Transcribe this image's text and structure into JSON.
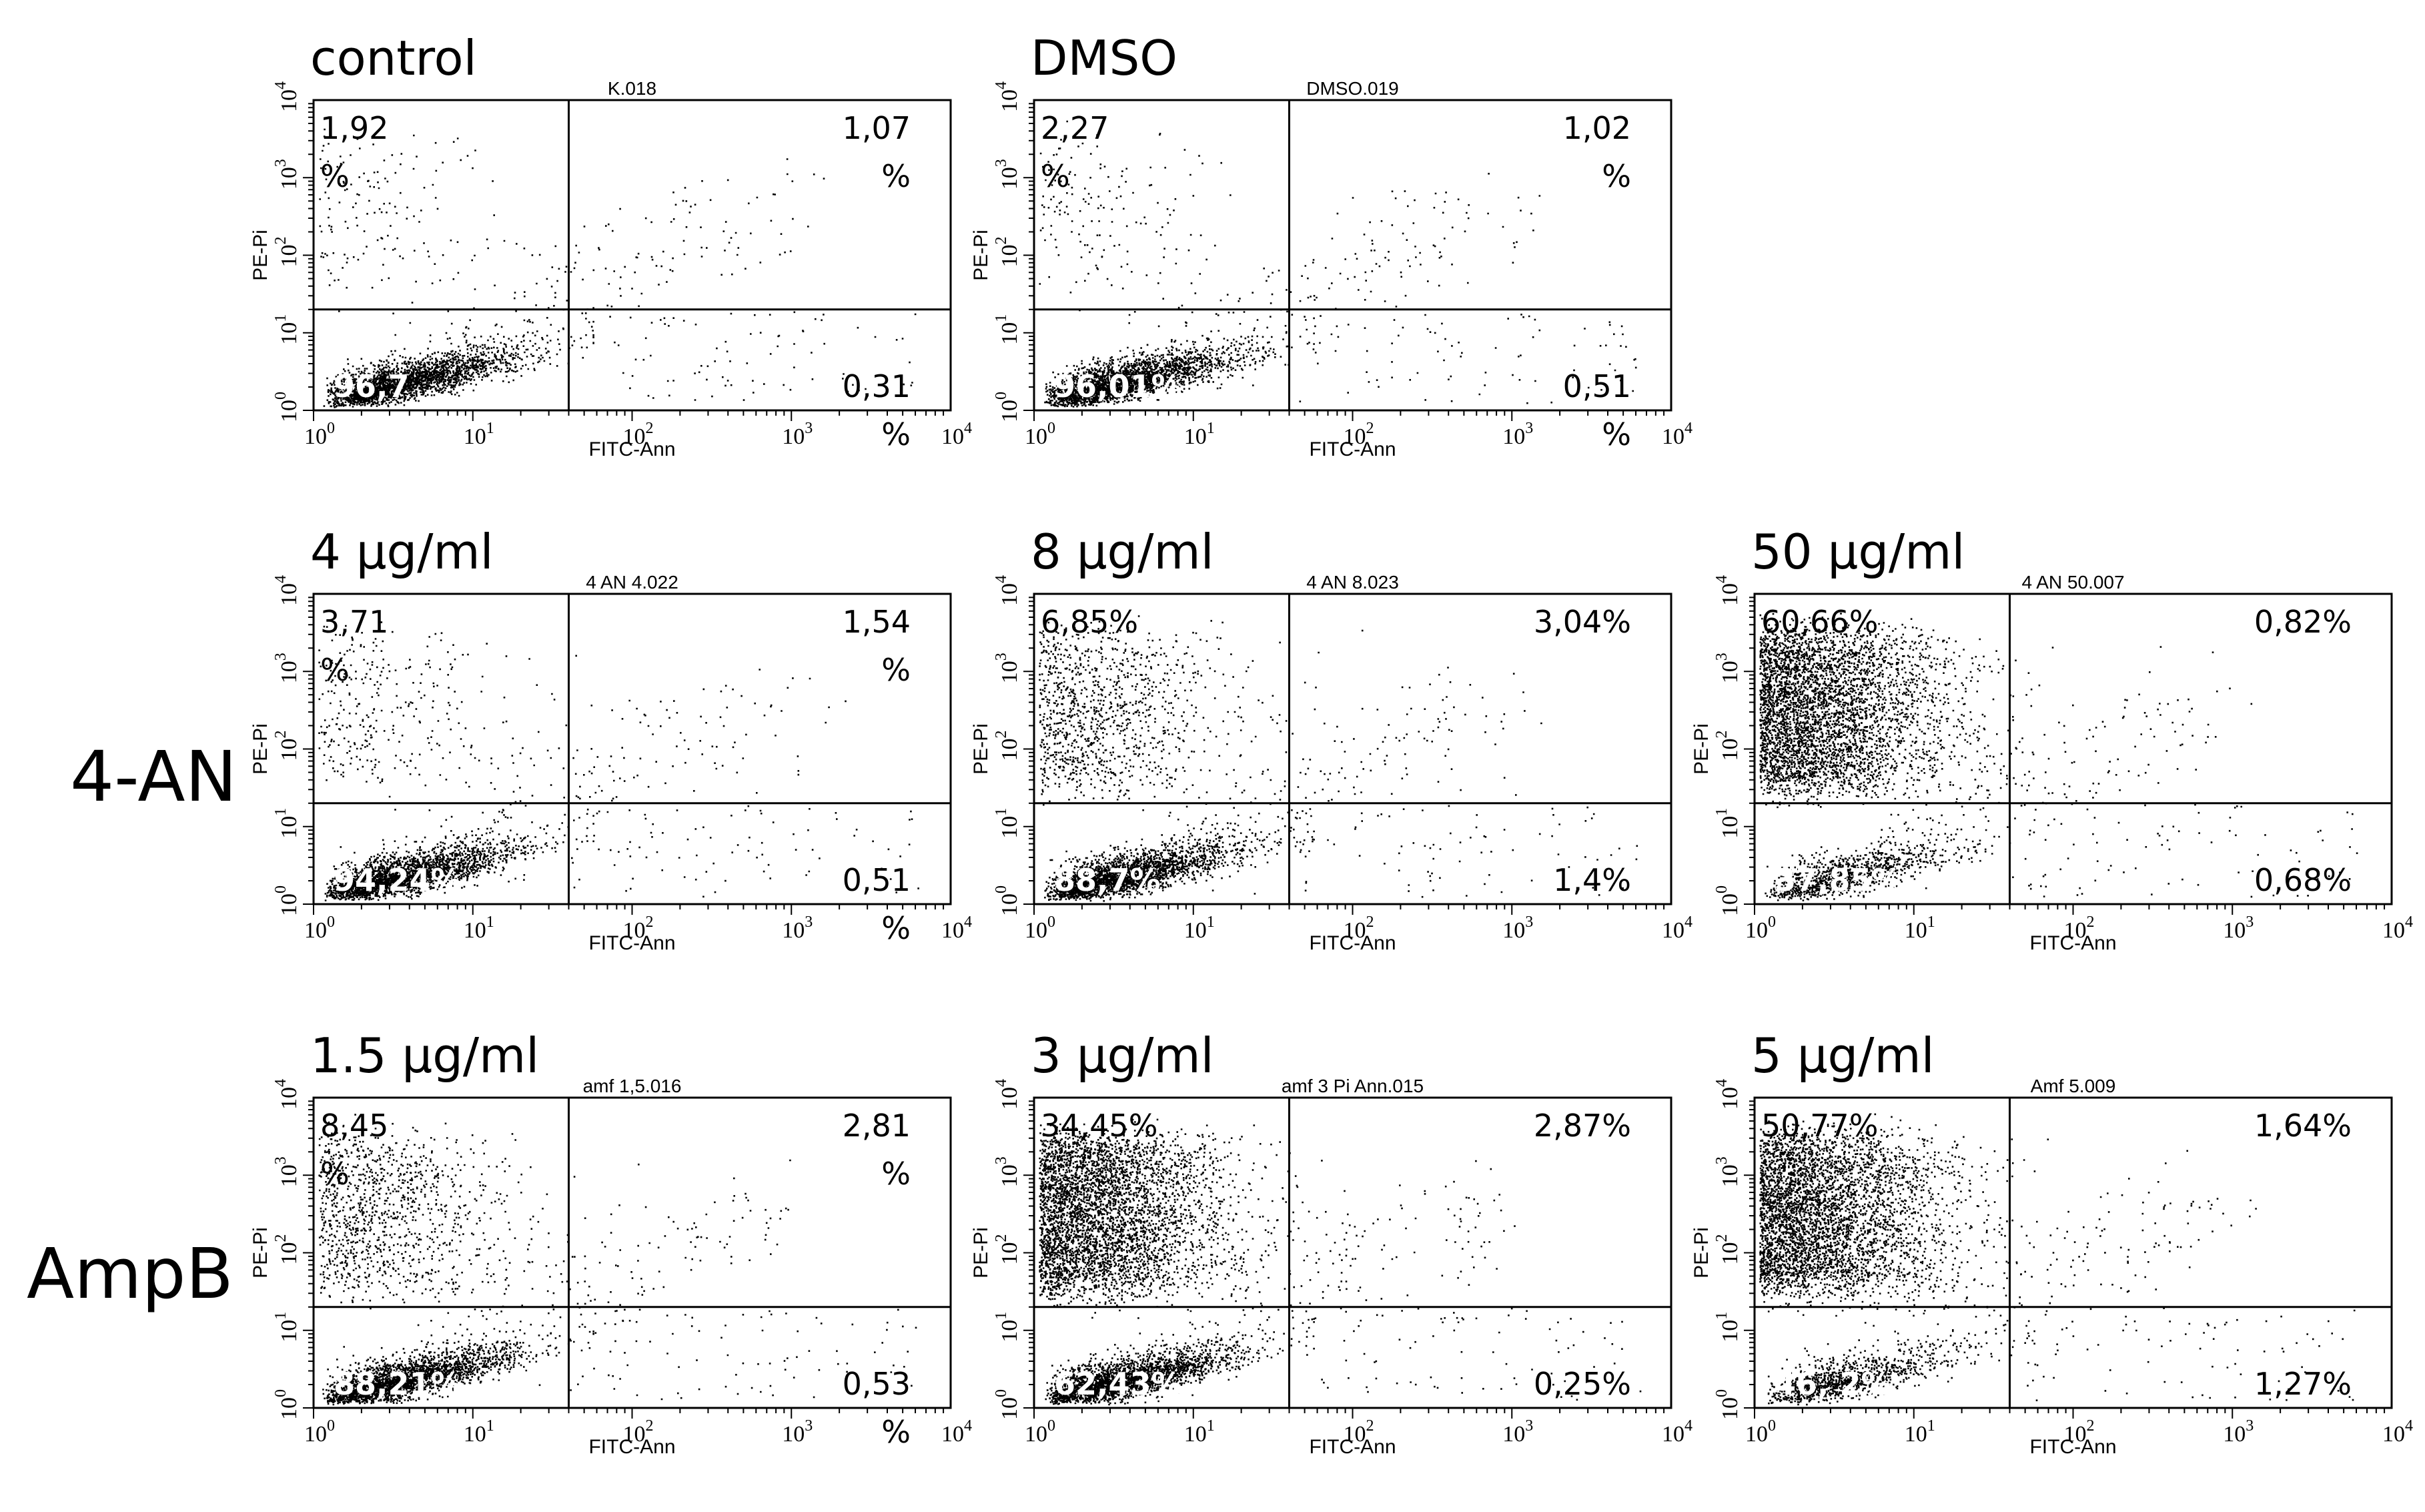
{
  "figure": {
    "row_labels": [
      "4-AN",
      "AmpB"
    ],
    "axis_x_label": "FITC-Ann",
    "axis_y_label": "PE-Pi"
  },
  "chart_data": [
    {
      "type": "scatter",
      "condition": "control",
      "title": "K.018",
      "xlabel": "FITC-Ann",
      "ylabel": "PE-Pi",
      "x_scale": "log",
      "y_scale": "log",
      "xlim": [
        1,
        10000
      ],
      "ylim": [
        1,
        10000
      ],
      "x_ticks": [
        "10^0",
        "10^1",
        "10^2",
        "10^3",
        "10^4"
      ],
      "y_ticks": [
        "10^0",
        "10^1",
        "10^2",
        "10^3",
        "10^4"
      ],
      "gate_x": 40,
      "gate_y": 20,
      "quadrants": {
        "upper_left": "1,92 %",
        "upper_right": "1,07 %",
        "lower_left": "96,7",
        "lower_right": "0,31 %"
      },
      "population": {
        "live_cluster": "dense",
        "apoptotic": "sparse",
        "necrotic": "sparse"
      }
    },
    {
      "type": "scatter",
      "condition": "DMSO",
      "title": "DMSO.019",
      "xlabel": "FITC-Ann",
      "ylabel": "PE-Pi",
      "x_scale": "log",
      "y_scale": "log",
      "xlim": [
        1,
        10000
      ],
      "ylim": [
        1,
        10000
      ],
      "x_ticks": [
        "10^0",
        "10^1",
        "10^2",
        "10^3",
        "10^4"
      ],
      "y_ticks": [
        "10^0",
        "10^1",
        "10^2",
        "10^3",
        "10^4"
      ],
      "gate_x": 40,
      "gate_y": 20,
      "quadrants": {
        "upper_left": "2,27 %",
        "upper_right": "1,02 %",
        "lower_left": "96,01%",
        "lower_right": "0,51 %"
      },
      "population": {
        "live_cluster": "dense",
        "apoptotic": "sparse",
        "necrotic": "sparse"
      }
    },
    {
      "type": "scatter",
      "group": "4-AN",
      "condition": "4 µg/ml",
      "title": "4 AN 4.022",
      "xlabel": "FITC-Ann",
      "ylabel": "PE-Pi",
      "x_scale": "log",
      "y_scale": "log",
      "xlim": [
        1,
        10000
      ],
      "ylim": [
        1,
        10000
      ],
      "x_ticks": [
        "10^0",
        "10^1",
        "10^2",
        "10^3",
        "10^4"
      ],
      "y_ticks": [
        "10^0",
        "10^1",
        "10^2",
        "10^3",
        "10^4"
      ],
      "gate_x": 40,
      "gate_y": 20,
      "quadrants": {
        "upper_left": "3,71 %",
        "upper_right": "1,54 %",
        "lower_left": "94,24%",
        "lower_right": "0,51 %"
      },
      "population": {
        "live_cluster": "dense",
        "apoptotic": "sparse",
        "necrotic": "light"
      }
    },
    {
      "type": "scatter",
      "group": "4-AN",
      "condition": "8 µg/ml",
      "title": "4 AN 8.023",
      "xlabel": "FITC-Ann",
      "ylabel": "PE-Pi",
      "x_scale": "log",
      "y_scale": "log",
      "xlim": [
        1,
        10000
      ],
      "ylim": [
        1,
        10000
      ],
      "x_ticks": [
        "10^0",
        "10^1",
        "10^2",
        "10^3",
        "10^4"
      ],
      "y_ticks": [
        "10^0",
        "10^1",
        "10^2",
        "10^3",
        "10^4"
      ],
      "gate_x": 40,
      "gate_y": 20,
      "quadrants": {
        "upper_left": "6,85%",
        "upper_right": "3,04%",
        "lower_left": "88,7%",
        "lower_right": "1,4%"
      },
      "population": {
        "live_cluster": "dense",
        "apoptotic": "sparse",
        "necrotic": "medium"
      }
    },
    {
      "type": "scatter",
      "group": "4-AN",
      "condition": "50 µg/ml",
      "title": "4 AN 50.007",
      "xlabel": "FITC-Ann",
      "ylabel": "PE-Pi",
      "x_scale": "log",
      "y_scale": "log",
      "xlim": [
        1,
        10000
      ],
      "ylim": [
        1,
        10000
      ],
      "x_ticks": [
        "10^0",
        "10^1",
        "10^2",
        "10^3",
        "10^4"
      ],
      "y_ticks": [
        "10^0",
        "10^1",
        "10^2",
        "10^3",
        "10^4"
      ],
      "gate_x": 40,
      "gate_y": 20,
      "quadrants": {
        "upper_left": "60,66%",
        "upper_right": "0,82%",
        "lower_left": "37,85%",
        "lower_right": "0,68%"
      },
      "population": {
        "live_cluster": "medium",
        "apoptotic": "sparse",
        "necrotic": "heavy"
      }
    },
    {
      "type": "scatter",
      "group": "AmpB",
      "condition": "1.5 µg/ml",
      "title": "amf 1,5.016",
      "xlabel": "FITC-Ann",
      "ylabel": "PE-Pi",
      "x_scale": "log",
      "y_scale": "log",
      "xlim": [
        1,
        10000
      ],
      "ylim": [
        1,
        10000
      ],
      "x_ticks": [
        "10^0",
        "10^1",
        "10^2",
        "10^3",
        "10^4"
      ],
      "y_ticks": [
        "10^0",
        "10^1",
        "10^2",
        "10^3",
        "10^4"
      ],
      "gate_x": 40,
      "gate_y": 20,
      "quadrants": {
        "upper_left": "8,45 %",
        "upper_right": "2,81 %",
        "lower_left": "88,21%",
        "lower_right": "0,53 %"
      },
      "population": {
        "live_cluster": "dense",
        "apoptotic": "sparse",
        "necrotic": "medium"
      }
    },
    {
      "type": "scatter",
      "group": "AmpB",
      "condition": "3 µg/ml",
      "title": "amf 3 Pi Ann.015",
      "xlabel": "FITC-Ann",
      "ylabel": "PE-Pi",
      "x_scale": "log",
      "y_scale": "log",
      "xlim": [
        1,
        10000
      ],
      "ylim": [
        1,
        10000
      ],
      "x_ticks": [
        "10^0",
        "10^1",
        "10^2",
        "10^3",
        "10^4"
      ],
      "y_ticks": [
        "10^0",
        "10^1",
        "10^2",
        "10^3",
        "10^4"
      ],
      "gate_x": 40,
      "gate_y": 20,
      "quadrants": {
        "upper_left": "34,45%",
        "upper_right": "2,87%",
        "lower_left": "62,43%",
        "lower_right": "0,25%"
      },
      "population": {
        "live_cluster": "dense",
        "apoptotic": "sparse",
        "necrotic": "heavy"
      }
    },
    {
      "type": "scatter",
      "group": "AmpB",
      "condition": "5 µg/ml",
      "title": "Amf 5.009",
      "xlabel": "FITC-Ann",
      "ylabel": "PE-Pi",
      "x_scale": "log",
      "y_scale": "log",
      "xlim": [
        1,
        10000
      ],
      "ylim": [
        1,
        10000
      ],
      "x_ticks": [
        "10^0",
        "10^1",
        "10^2",
        "10^3",
        "10^4"
      ],
      "y_ticks": [
        "10^0",
        "10^1",
        "10^2",
        "10^3",
        "10^4"
      ],
      "gate_x": 40,
      "gate_y": 20,
      "quadrants": {
        "upper_left": "50,77%",
        "upper_right": "1,64%",
        "lower_left": "46, 2%",
        "lower_right": "1,27%"
      },
      "population": {
        "live_cluster": "medium",
        "apoptotic": "sparse",
        "necrotic": "heavy"
      }
    }
  ]
}
